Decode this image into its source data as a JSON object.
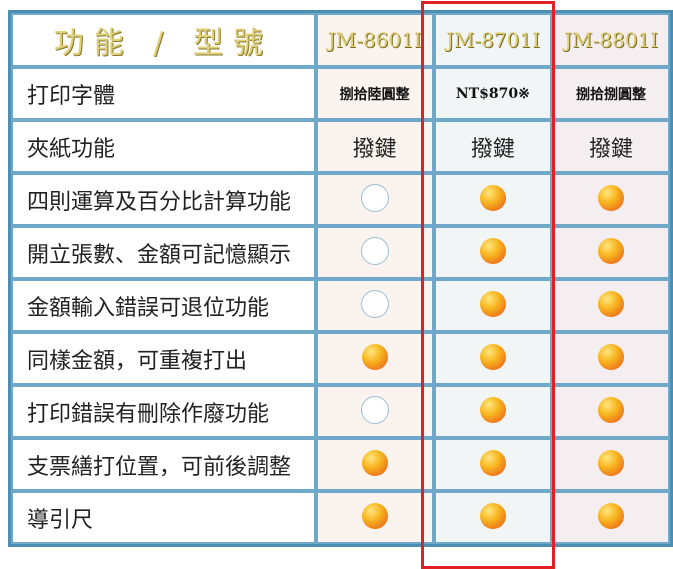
{
  "header": {
    "label": "功能 / 型號",
    "models": [
      "JM-8601I",
      "JM-8701I",
      "JM-8801I"
    ]
  },
  "rows": [
    {
      "label": "打印字體",
      "type": "text",
      "values": [
        "捌拾陸圓整",
        "NT$870※",
        "捌拾捌圓整"
      ]
    },
    {
      "label": "夾紙功能",
      "type": "key",
      "values": [
        "撥鍵",
        "撥鍵",
        "撥鍵"
      ]
    },
    {
      "label": "四則運算及百分比計算功能",
      "type": "dot",
      "values": [
        false,
        true,
        true
      ]
    },
    {
      "label": "開立張數、金額可記憶顯示",
      "type": "dot",
      "values": [
        false,
        true,
        true
      ]
    },
    {
      "label": "金額輸入錯誤可退位功能",
      "type": "dot",
      "values": [
        false,
        true,
        true
      ]
    },
    {
      "label": "同樣金額，可重複打出",
      "type": "dot",
      "values": [
        true,
        true,
        true
      ]
    },
    {
      "label": "打印錯誤有刪除作廢功能",
      "type": "dot",
      "values": [
        false,
        true,
        true
      ]
    },
    {
      "label": "支票繕打位置，可前後調整",
      "type": "dot",
      "values": [
        true,
        true,
        true
      ]
    },
    {
      "label": "導引尺",
      "type": "dot",
      "values": [
        true,
        true,
        true
      ]
    }
  ],
  "colors": {
    "highlight": "#e41e25",
    "border": "#4d8fb3",
    "dot": "#f7b51e"
  }
}
